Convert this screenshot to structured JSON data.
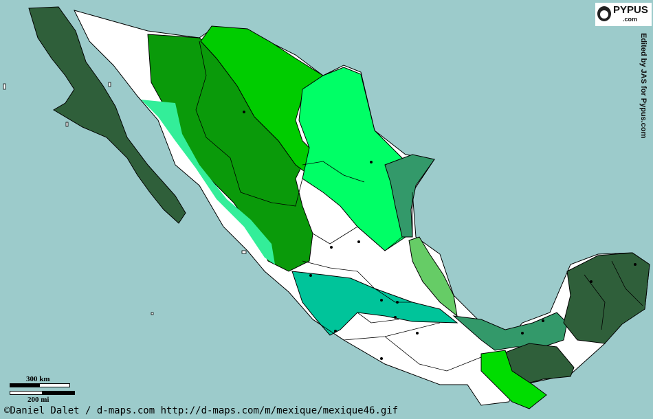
{
  "logo": {
    "name": "PYPUS",
    "sub": ".com"
  },
  "edited_by": "Edited by JAS for Pypus.com",
  "scale": {
    "km_label": "300 km",
    "mi_label": "200 mi"
  },
  "credit": "©Daniel Dalet / d-maps.com  http://d-maps.com/m/mexique/mexique46.gif",
  "colors": {
    "sea": "#9ccbcb",
    "white_land": "#ffffff",
    "dark_green": "#2f5f3a",
    "forest_green": "#0a9a0a",
    "bright_green": "#00cc00",
    "light_green": "#00ff66",
    "mint": "#33ee99",
    "teal": "#00c49a",
    "sea_green": "#33996a",
    "pale_green": "#66cc66",
    "lime": "#00dd00"
  }
}
